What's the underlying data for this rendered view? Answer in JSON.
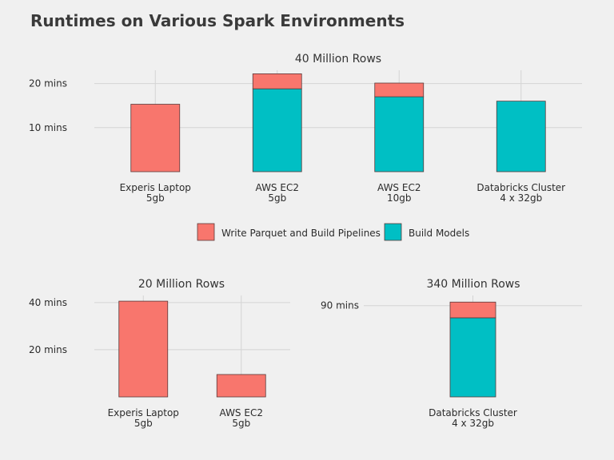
{
  "title": "Runtimes on Various Spark Environments",
  "colors": {
    "write_parquet": "#F8766D",
    "build_models": "#00BFC4",
    "background": "#f0f0f0",
    "grid": "#d4d4d4"
  },
  "legend": {
    "position": "between panels",
    "items": [
      {
        "label": "Write Parquet and Build Pipelines",
        "color": "#F8766D"
      },
      {
        "label": "Build Models",
        "color": "#00BFC4"
      }
    ]
  },
  "chart_data": [
    {
      "type": "bar",
      "stacked": true,
      "title": "40 Million Rows",
      "categories": [
        [
          "Experis Laptop",
          "5gb"
        ],
        [
          "AWS EC2",
          "5gb"
        ],
        [
          "AWS EC2",
          "10gb"
        ],
        [
          "Databricks Cluster",
          "4 x 32gb"
        ]
      ],
      "y_ticks": [
        {
          "value": 10,
          "label": "10 mins"
        },
        {
          "value": 20,
          "label": "20 mins"
        }
      ],
      "ylim": [
        0,
        23
      ],
      "grid": true,
      "series": [
        {
          "name": "Build Models",
          "color": "#00BFC4",
          "values": [
            0,
            18.8,
            17,
            16
          ]
        },
        {
          "name": "Write Parquet and Build Pipelines",
          "color": "#F8766D",
          "values": [
            15.3,
            3.4,
            3.1,
            0
          ]
        }
      ]
    },
    {
      "type": "bar",
      "stacked": true,
      "title": "20 Million Rows",
      "categories": [
        [
          "Experis Laptop",
          "5gb"
        ],
        [
          "AWS EC2",
          "5gb"
        ]
      ],
      "y_ticks": [
        {
          "value": 20,
          "label": "20 mins"
        },
        {
          "value": 40,
          "label": "40 mins"
        }
      ],
      "ylim": [
        0,
        43
      ],
      "grid": true,
      "series": [
        {
          "name": "Build Models",
          "color": "#00BFC4",
          "values": [
            0,
            0
          ]
        },
        {
          "name": "Write Parquet and Build Pipelines",
          "color": "#F8766D",
          "values": [
            40.6,
            9.5
          ]
        }
      ]
    },
    {
      "type": "bar",
      "stacked": true,
      "title": "340 Million Rows",
      "categories": [
        [
          "Databricks Cluster",
          "4 x 32gb"
        ]
      ],
      "y_ticks": [
        {
          "value": 90,
          "label": "90 mins"
        }
      ],
      "ylim": [
        0,
        100
      ],
      "grid": true,
      "series": [
        {
          "name": "Build Models",
          "color": "#00BFC4",
          "values": [
            78
          ]
        },
        {
          "name": "Write Parquet and Build Pipelines",
          "color": "#F8766D",
          "values": [
            15.5
          ]
        }
      ]
    }
  ]
}
